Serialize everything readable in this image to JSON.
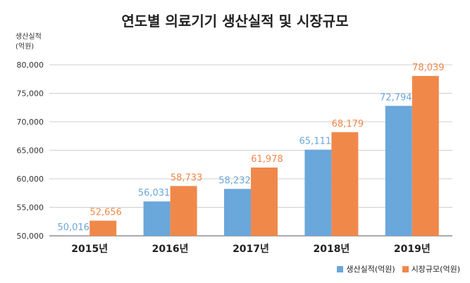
{
  "chart_data": {
    "type": "bar",
    "title": "연도별 의료기기 생산실적 및 시장규모",
    "ylabel_line1": "생산실적",
    "ylabel_line2": "(억원)",
    "ylim": [
      50000,
      80000
    ],
    "yticks": [
      50000,
      55000,
      60000,
      65000,
      70000,
      75000,
      80000
    ],
    "ytick_labels": [
      "50,000",
      "55,000",
      "60,000",
      "65,000",
      "70,000",
      "75,000",
      "80,000"
    ],
    "grid": true,
    "legend_position": "bottom-right",
    "categories": [
      "2015년",
      "2016년",
      "2017년",
      "2018년",
      "2019년"
    ],
    "series": [
      {
        "name": "생산실적(억원)",
        "color": "#6aa7da",
        "label_color": "#6aa7da",
        "values": [
          50016,
          56031,
          58232,
          65111,
          72794
        ],
        "labels": [
          "50,016",
          "56,031",
          "58,232",
          "65,111",
          "72,794"
        ]
      },
      {
        "name": "시장규모(억원)",
        "color": "#f0884a",
        "label_color": "#f0884a",
        "values": [
          52656,
          58733,
          61978,
          68179,
          78039
        ],
        "labels": [
          "52,656",
          "58,733",
          "61,978",
          "68,179",
          "78,039"
        ]
      }
    ]
  }
}
